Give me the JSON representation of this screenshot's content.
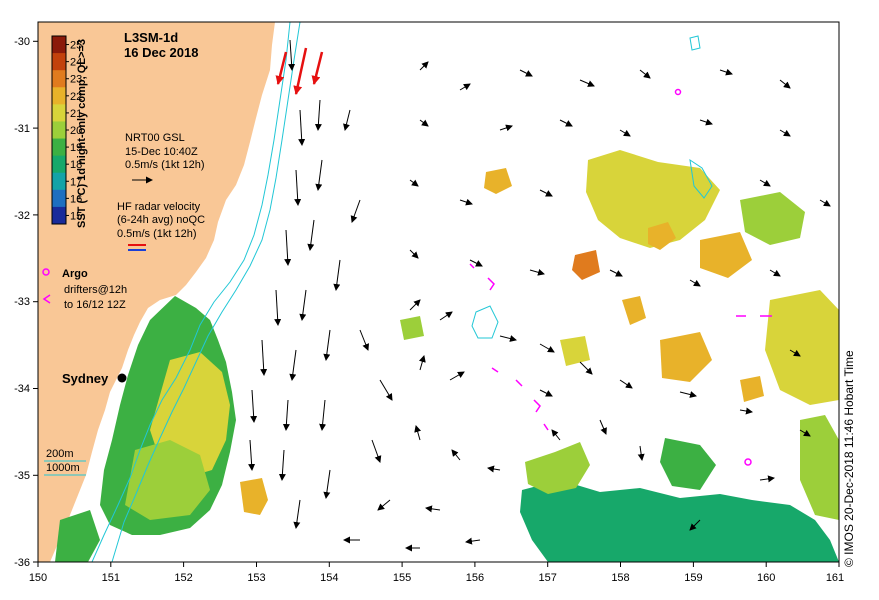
{
  "title": {
    "product": "L3SM-1d",
    "date": "16 Dec 2018"
  },
  "colorbar": {
    "label": "SST (°C) 1d night-only comp, QL>=3",
    "ticks": [
      "25",
      "24",
      "23",
      "22",
      "21",
      "20",
      "19",
      "18",
      "17",
      "16",
      "15"
    ],
    "colors": [
      "#8b1a0a",
      "#c2410c",
      "#e07b1e",
      "#e8b22a",
      "#d8d43a",
      "#9ccf3a",
      "#3cb043",
      "#17a86a",
      "#14a3a7",
      "#1f6fc0",
      "#1a2b9a"
    ]
  },
  "legend": {
    "gsl_lines": [
      "NRT00 GSL",
      "15-Dec 10:40Z",
      "0.5m/s (1kt 12h)"
    ],
    "hf_lines": [
      "HF radar velocity",
      "(6-24h avg) noQC",
      "0.5m/s (1kt 12h)"
    ],
    "argo_label": "Argo",
    "drifter_lines": [
      "drifters@12h",
      "to 16/12 12Z"
    ],
    "depth_200": "200m",
    "depth_1000": "1000m"
  },
  "city": {
    "name": "Sydney"
  },
  "axes": {
    "x_ticks": [
      "150",
      "151",
      "152",
      "153",
      "154",
      "155",
      "156",
      "157",
      "158",
      "159",
      "160",
      "161"
    ],
    "y_ticks": [
      "-30",
      "-31",
      "-32",
      "-33",
      "-34",
      "-35",
      "-36"
    ]
  },
  "credit": "© IMOS 20-Dec-2018 11:46 Hobart Time",
  "colors": {
    "land": "#f9c796",
    "argo": "#ff00ff",
    "hf": "#e61010",
    "isobath": "#22c7d6"
  }
}
